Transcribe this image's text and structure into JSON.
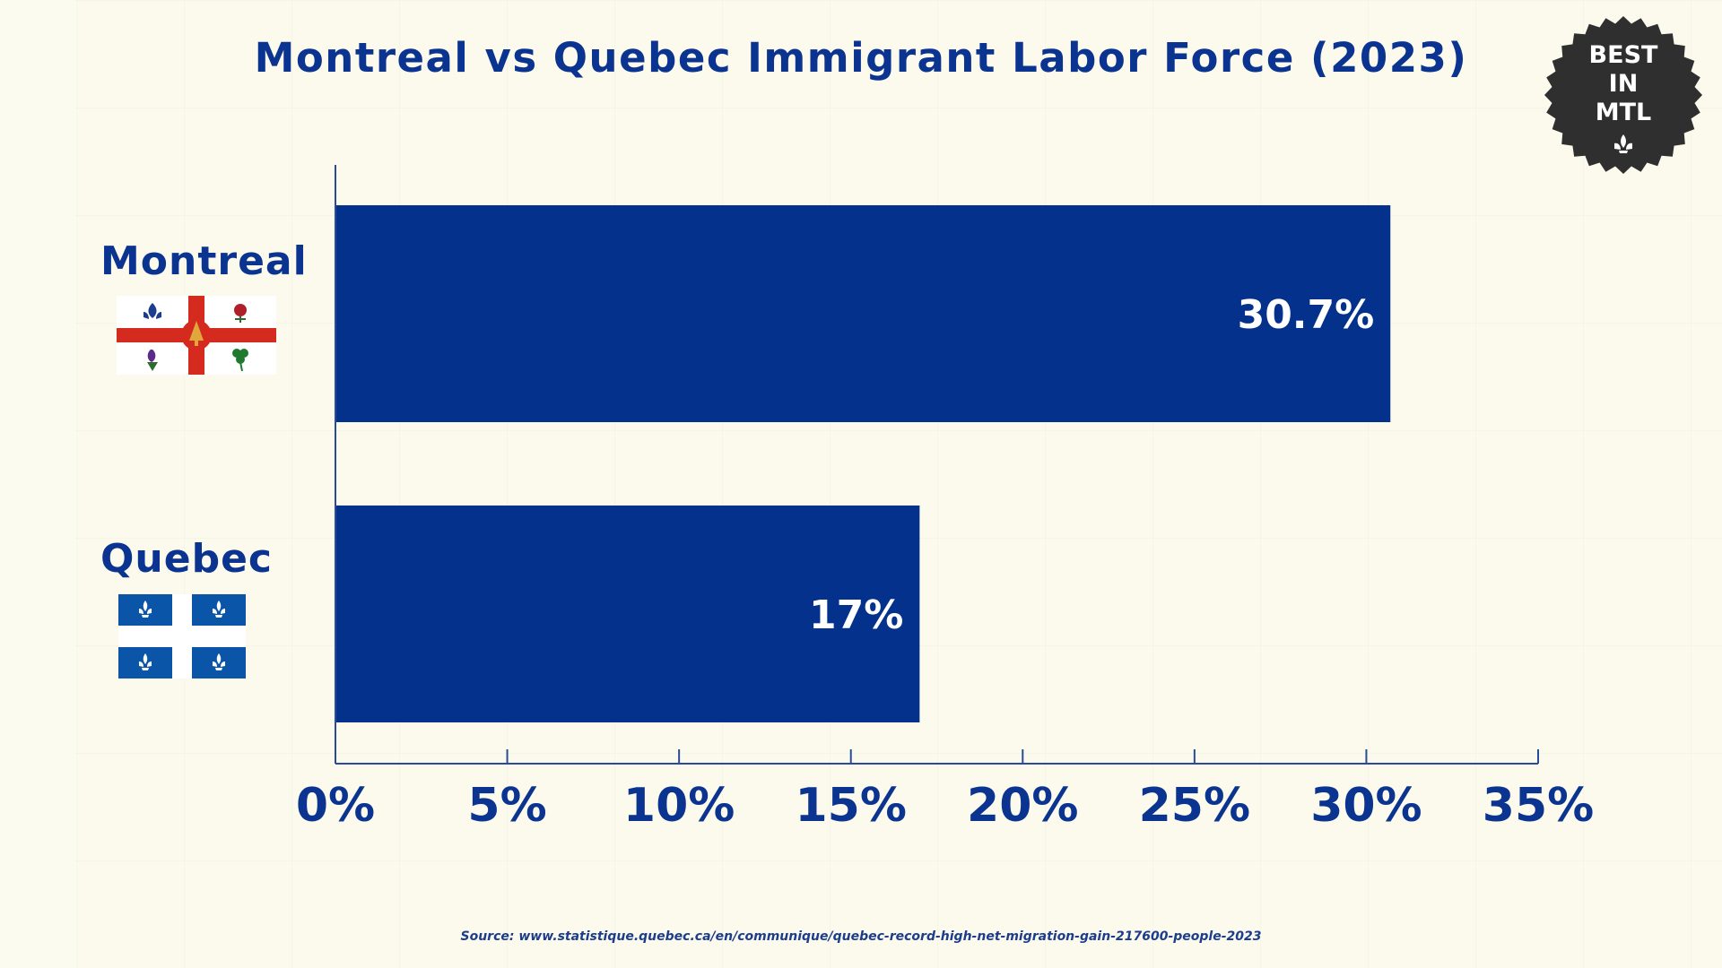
{
  "chart_data": {
    "type": "bar",
    "orientation": "horizontal",
    "title": "Montreal vs Quebec Immigrant Labor Force (2023)",
    "categories": [
      "Montreal",
      "Quebec"
    ],
    "values": [
      30.7,
      17
    ],
    "value_labels": [
      "30.7%",
      "17%"
    ],
    "xlim": [
      0,
      35
    ],
    "x_ticks": [
      0,
      5,
      10,
      15,
      20,
      25,
      30,
      35
    ],
    "x_tick_labels": [
      "0%",
      "5%",
      "10%",
      "15%",
      "20%",
      "25%",
      "30%",
      "35%"
    ],
    "xlabel": "",
    "ylabel": "",
    "grid": false,
    "legend": "none",
    "bar_color": "#03318b",
    "axis_color": "#2a4a9a",
    "label_color": "#0b3491"
  },
  "badge": {
    "lines": [
      "BEST",
      "IN",
      "MTL"
    ],
    "icon": "fleur-de-lis-icon",
    "color": "#2f2f2f"
  },
  "flags": {
    "montreal": "montreal-flag-icon",
    "quebec": "quebec-flag-icon"
  },
  "source": "Source: www.statistique.quebec.ca/en/communique/quebec-record-high-net-migration-gain-217600-people-2023"
}
